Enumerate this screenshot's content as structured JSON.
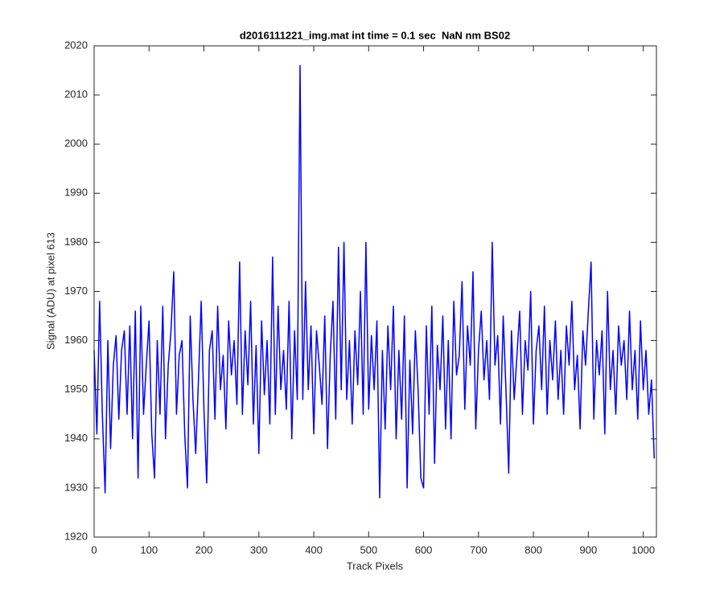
{
  "chart_data": {
    "type": "line",
    "title": "d2016111221_img.mat int time = 0.1 sec  NaN nm BS02",
    "xlabel": "Track Pixels",
    "ylabel": "Signal (ADU) at pixel 613",
    "color": "#0000ff",
    "xlim": [
      0,
      1024
    ],
    "ylim": [
      1920,
      2020
    ],
    "xticks": [
      0,
      100,
      200,
      300,
      400,
      500,
      600,
      700,
      800,
      900,
      1000
    ],
    "yticks": [
      1920,
      1930,
      1940,
      1950,
      1960,
      1970,
      1980,
      1990,
      2000,
      2010,
      2020
    ],
    "x": [
      0,
      5,
      10,
      15,
      20,
      25,
      30,
      35,
      40,
      45,
      50,
      55,
      60,
      65,
      70,
      75,
      80,
      85,
      90,
      95,
      100,
      105,
      110,
      115,
      120,
      125,
      130,
      135,
      140,
      145,
      150,
      155,
      160,
      165,
      170,
      175,
      180,
      185,
      190,
      195,
      200,
      205,
      210,
      215,
      220,
      225,
      230,
      235,
      240,
      245,
      250,
      255,
      260,
      265,
      270,
      275,
      280,
      285,
      290,
      295,
      300,
      305,
      310,
      315,
      320,
      325,
      330,
      335,
      340,
      345,
      350,
      355,
      360,
      365,
      370,
      375,
      380,
      385,
      390,
      395,
      400,
      405,
      410,
      415,
      420,
      425,
      430,
      435,
      440,
      445,
      450,
      455,
      460,
      465,
      470,
      475,
      480,
      485,
      490,
      495,
      500,
      505,
      510,
      515,
      520,
      525,
      530,
      535,
      540,
      545,
      550,
      555,
      560,
      565,
      570,
      575,
      580,
      585,
      590,
      595,
      600,
      605,
      610,
      615,
      620,
      625,
      630,
      635,
      640,
      645,
      650,
      655,
      660,
      665,
      670,
      675,
      680,
      685,
      690,
      695,
      700,
      705,
      710,
      715,
      720,
      725,
      730,
      735,
      740,
      745,
      750,
      755,
      760,
      765,
      770,
      775,
      780,
      785,
      790,
      795,
      800,
      805,
      810,
      815,
      820,
      825,
      830,
      835,
      840,
      845,
      850,
      855,
      860,
      865,
      870,
      875,
      880,
      885,
      890,
      895,
      900,
      905,
      910,
      915,
      920,
      925,
      930,
      935,
      940,
      945,
      950,
      955,
      960,
      965,
      970,
      975,
      980,
      985,
      990,
      995,
      1000,
      1005,
      1010,
      1015,
      1020
    ],
    "values": [
      1958,
      1941,
      1968,
      1945,
      1929,
      1960,
      1938,
      1955,
      1961,
      1944,
      1958,
      1962,
      1945,
      1963,
      1940,
      1966,
      1932,
      1967,
      1945,
      1955,
      1964,
      1941,
      1932,
      1960,
      1945,
      1967,
      1940,
      1955,
      1962,
      1974,
      1945,
      1957,
      1960,
      1941,
      1930,
      1965,
      1948,
      1937,
      1952,
      1968,
      1946,
      1931,
      1958,
      1962,
      1944,
      1967,
      1950,
      1957,
      1942,
      1964,
      1953,
      1960,
      1947,
      1976,
      1945,
      1962,
      1951,
      1968,
      1943,
      1959,
      1937,
      1964,
      1949,
      1960,
      1943,
      1977,
      1945,
      1967,
      1950,
      1958,
      1946,
      1968,
      1940,
      1962,
      1948,
      2016,
      1948,
      1972,
      1950,
      1963,
      1941,
      1962,
      1955,
      1947,
      1965,
      1938,
      1957,
      1968,
      1944,
      1979,
      1950,
      1980,
      1948,
      1960,
      1943,
      1962,
      1951,
      1970,
      1945,
      1980,
      1946,
      1961,
      1950,
      1964,
      1928,
      1958,
      1942,
      1963,
      1950,
      1967,
      1940,
      1958,
      1944,
      1965,
      1930,
      1956,
      1941,
      1962,
      1950,
      1932,
      1930,
      1963,
      1945,
      1967,
      1935,
      1959,
      1950,
      1965,
      1942,
      1960,
      1940,
      1968,
      1953,
      1957,
      1972,
      1946,
      1963,
      1955,
      1974,
      1942,
      1958,
      1966,
      1952,
      1960,
      1948,
      1980,
      1955,
      1961,
      1943,
      1965,
      1950,
      1933,
      1962,
      1948,
      1957,
      1966,
      1945,
      1960,
      1954,
      1970,
      1943,
      1958,
      1963,
      1950,
      1967,
      1945,
      1960,
      1952,
      1964,
      1948,
      1958,
      1945,
      1963,
      1955,
      1968,
      1950,
      1957,
      1942,
      1962,
      1955,
      1966,
      1976,
      1944,
      1960,
      1953,
      1962,
      1941,
      1970,
      1950,
      1958,
      1945,
      1963,
      1955,
      1960,
      1948,
      1966,
      1950,
      1958,
      1944,
      1964,
      1950,
      1958,
      1945,
      1952,
      1936
    ]
  }
}
